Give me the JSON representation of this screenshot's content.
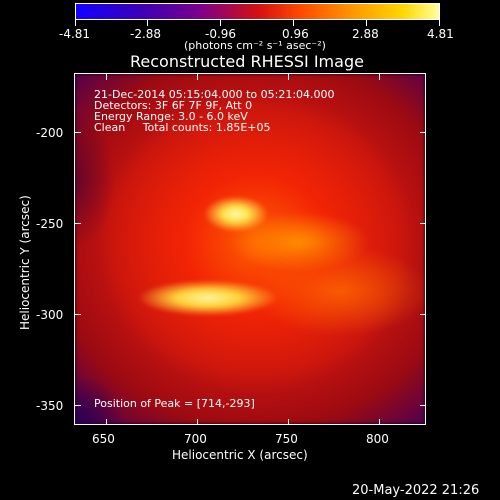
{
  "colorbar": {
    "ticks": [
      "-4.81",
      "-2.88",
      "-0.96",
      "0.96",
      "2.88",
      "4.81"
    ],
    "units": "(photons cm⁻² s⁻¹ asec⁻²)",
    "colors": [
      "#1400ff",
      "#7a008c",
      "#d31012",
      "#ff9600",
      "#ffd800",
      "#ffff9c"
    ]
  },
  "title": "Reconstructed RHESSI Image",
  "info": {
    "line1": "21-Dec-2014 05:15:04.000 to 05:21:04.000",
    "line2": "Detectors: 3F 6F 7F 9F, Att 0",
    "line3": "Energy Range: 3.0 - 6.0 keV",
    "line4": "Clean     Total counts: 1.85E+05"
  },
  "peak": "Position of Peak = [714,-293]",
  "axes": {
    "xlabel": "Heliocentric X (arcsec)",
    "ylabel": "Heliocentric Y (arcsec)",
    "xticks": [
      "650",
      "700",
      "750",
      "800"
    ],
    "yticks": [
      "-200",
      "-250",
      "-300",
      "-350"
    ]
  },
  "timestamp": "20-May-2022 21:26"
}
